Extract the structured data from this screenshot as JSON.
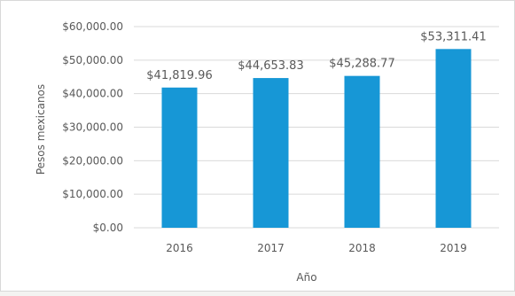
{
  "chart_data": {
    "type": "bar",
    "categories": [
      "2016",
      "2017",
      "2018",
      "2019"
    ],
    "values": [
      41819.96,
      44653.83,
      45288.77,
      53311.41
    ],
    "data_labels": [
      "$41,819.96",
      "$44,653.83",
      "$45,288.77",
      "$53,311.41"
    ],
    "y_ticks": [
      0,
      10000,
      20000,
      30000,
      40000,
      50000,
      60000
    ],
    "y_tick_labels": [
      "$0.00",
      "$10,000.00",
      "$20,000.00",
      "$30,000.00",
      "$40,000.00",
      "$50,000.00",
      "$60,000.00"
    ],
    "xlabel": "Año",
    "ylabel": "Pesos mexicanos",
    "ylim": [
      0,
      60000
    ],
    "grid": true,
    "legend": "none",
    "bar_color": "#1797d6",
    "grid_color": "#d9d9d9"
  }
}
